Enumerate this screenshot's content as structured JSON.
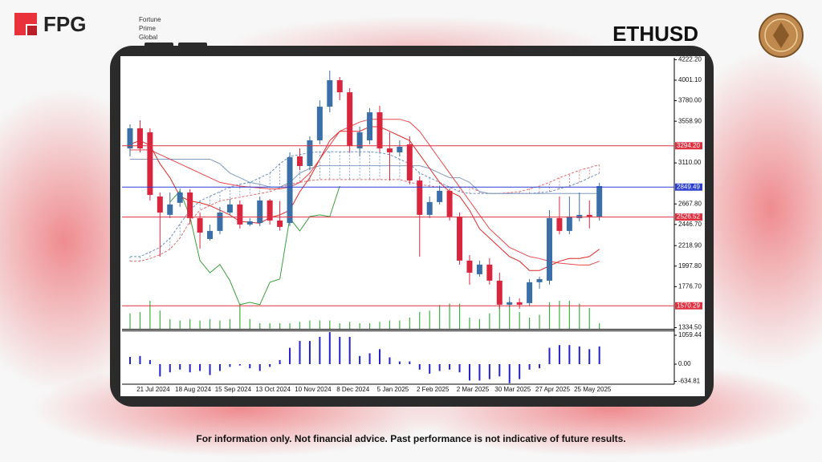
{
  "header": {
    "logo_text": "FPG",
    "logo_tagline": [
      "Fortune",
      "Prime",
      "Global"
    ],
    "symbol": "ETHUSD"
  },
  "footer": {
    "disclaimer": "For information only. Not financial advice. Past performance is not indicative of future results."
  },
  "chart_data": [
    {
      "type": "candlestick",
      "categories": [
        null,
        null,
        "21 Jul 2024",
        null,
        null,
        null,
        "18 Aug 2024",
        null,
        null,
        null,
        "15 Sep 2024",
        null,
        null,
        null,
        "13 Oct 2024",
        null,
        null,
        null,
        "10 Nov 2024",
        null,
        null,
        null,
        "8 Dec 2024",
        null,
        null,
        null,
        "5 Jan 2025",
        null,
        null,
        null,
        "2 Feb 2025",
        null,
        null,
        null,
        "2 Mar 2025",
        null,
        null,
        null,
        "30 Mar 2025",
        null,
        null,
        null,
        "27 Apr 2025",
        null,
        null,
        null,
        "25 May 2025",
        null
      ],
      "open": [
        3266,
        3483,
        3440,
        2748,
        2550,
        2680,
        2791,
        2515,
        2290,
        2377,
        2575,
        2662,
        2446,
        2463,
        2705,
        2489,
        2463,
        3180,
        3076,
        3353,
        3716,
        4001,
        3871,
        3266,
        3353,
        3655,
        3266,
        3223,
        3310,
        2920,
        2550,
        2688,
        2809,
        2532,
        2057,
        1910,
        2014,
        1841,
        1582,
        1608,
        1599,
        1824,
        1841,
        2515,
        2377,
        2515,
        2550,
        2532
      ],
      "high": [
        3526,
        3569,
        3483,
        2791,
        2791,
        2835,
        2826,
        2575,
        2446,
        2636,
        2722,
        2705,
        2515,
        2748,
        2722,
        2700,
        3223,
        3266,
        3396,
        3785,
        4105,
        4036,
        3915,
        3500,
        3700,
        3725,
        3440,
        3353,
        3396,
        2964,
        2748,
        2860,
        2835,
        2575,
        2117,
        2057,
        2083,
        1927,
        1668,
        1651,
        1858,
        1884,
        2601,
        2748,
        2748,
        2791,
        2705,
        2895
      ],
      "low": [
        3180,
        3223,
        2705,
        2100,
        2515,
        2636,
        2446,
        2187,
        2273,
        2342,
        2550,
        2403,
        2429,
        2429,
        2446,
        2380,
        2429,
        3033,
        3033,
        3310,
        3655,
        3785,
        3223,
        3180,
        3310,
        3223,
        2920,
        3180,
        2878,
        2100,
        2515,
        2662,
        2489,
        2014,
        1798,
        1884,
        1798,
        1539,
        1556,
        1539,
        1565,
        1755,
        1798,
        2342,
        2342,
        2480,
        2403,
        2489
      ],
      "close": [
        3483,
        3266,
        2765,
        2575,
        2662,
        2791,
        2515,
        2359,
        2377,
        2575,
        2662,
        2446,
        2480,
        2705,
        2489,
        2420,
        3171,
        3076,
        3353,
        3716,
        4001,
        3871,
        3292,
        3440,
        3655,
        3266,
        3223,
        3284,
        2920,
        2550,
        2688,
        2809,
        2532,
        2057,
        1927,
        2014,
        1841,
        1582,
        1608,
        1582,
        1824,
        1858,
        2515,
        2377,
        2532,
        2550,
        2532,
        2860
      ],
      "up_color": "#3a6fa8",
      "down_color": "#d9263e",
      "cloud": {
        "span_a": {
          "color": "#6a8fc0",
          "values": [
            2100,
            2100,
            2150,
            2200,
            2300,
            2450,
            2600,
            2700,
            2750,
            2800,
            2850,
            2880,
            2900,
            2950,
            3000,
            3100,
            3180,
            3200,
            3220,
            3230,
            3230,
            3230,
            3230,
            3230,
            3230,
            3220,
            3200,
            3150,
            3100,
            3000,
            2950,
            2900,
            2850,
            2800,
            2780,
            2780,
            2780,
            2780,
            2780,
            2780,
            2780,
            2790,
            2800,
            2830,
            2860,
            2900,
            2950,
            3000
          ]
        },
        "span_b": {
          "color": "#e06a6a",
          "values": [
            2050,
            2050,
            2080,
            2120,
            2180,
            2300,
            2480,
            2600,
            2650,
            2700,
            2720,
            2740,
            2760,
            2780,
            2800,
            2840,
            2880,
            2900,
            2920,
            2930,
            2930,
            2930,
            2930,
            2930,
            2930,
            2930,
            2930,
            2930,
            2900,
            2880,
            2860,
            2850,
            2850,
            2850,
            2850,
            2800,
            2780,
            2780,
            2790,
            2800,
            2830,
            2860,
            2900,
            2950,
            2990,
            3030,
            3060,
            3090
          ]
        }
      },
      "overlays": [
        {
          "color": "#7f9cc0",
          "values": [
            3150,
            3150,
            3150,
            3150,
            3150,
            3150,
            3150,
            3150,
            3150,
            3100,
            3000,
            2950,
            2900,
            2880,
            2850,
            2850,
            2900,
            3000,
            3050,
            3080,
            3080,
            3080,
            3080,
            3080,
            3080,
            3080,
            3080,
            3080,
            3080,
            3080,
            3050,
            3000,
            2950,
            2950,
            2900,
            2800,
            2780,
            2780,
            2780,
            2780,
            2780,
            2780,
            2780,
            2780,
            2780,
            2780,
            2780,
            2780
          ]
        },
        {
          "color": "#e8484c",
          "values": [
            3250,
            3250,
            3250,
            3200,
            3150,
            3100,
            3050,
            3000,
            2950,
            2900,
            2880,
            2860,
            2850,
            2840,
            2830,
            2830,
            2850,
            2900,
            3000,
            3150,
            3300,
            3450,
            3500,
            3550,
            3580,
            3580,
            3580,
            3580,
            3550,
            3450,
            3300,
            3150,
            3000,
            2850,
            2700,
            2550,
            2400,
            2300,
            2200,
            2150,
            2100,
            2080,
            2050,
            2030,
            2020,
            2010,
            2010,
            2050
          ]
        },
        {
          "color": "#e02828",
          "values": [
            3310,
            3350,
            3300,
            3100,
            2950,
            2750,
            2700,
            2680,
            2650,
            2600,
            2550,
            2480,
            2470,
            2460,
            2520,
            2550,
            2600,
            2800,
            2950,
            3150,
            3350,
            3450,
            3450,
            3450,
            3500,
            3500,
            3450,
            3400,
            3350,
            3200,
            3050,
            2900,
            2800,
            2750,
            2600,
            2400,
            2300,
            2200,
            2100,
            2050,
            1950,
            1950,
            2000,
            2050,
            2080,
            2080,
            2100,
            2180
          ]
        },
        {
          "color": "#3aa03a",
          "values": [
            null,
            null,
            null,
            null,
            2688,
            2809,
            2532,
            2057,
            1927,
            2014,
            1841,
            1582,
            1608,
            1582,
            1824,
            1858,
            2515,
            2377,
            2532,
            2550,
            2532,
            2860,
            null,
            null,
            null,
            null,
            null,
            null,
            null,
            null,
            null,
            null,
            null,
            null,
            null,
            null,
            null,
            null,
            null,
            null,
            null,
            null,
            null,
            null,
            null,
            null,
            null,
            null
          ]
        }
      ],
      "volume": {
        "color": "#3cb043",
        "values": [
          55,
          60,
          100,
          65,
          35,
          30,
          35,
          30,
          35,
          30,
          35,
          90,
          35,
          20,
          20,
          20,
          20,
          25,
          30,
          30,
          30,
          20,
          25,
          20,
          20,
          25,
          30,
          30,
          40,
          60,
          65,
          85,
          90,
          90,
          40,
          35,
          55,
          100,
          100,
          60,
          40,
          50,
          95,
          100,
          100,
          90,
          75,
          20
        ]
      },
      "volume_lim": [
        0,
        100
      ],
      "levels": [
        {
          "value": 3294.2,
          "label": "3294.20",
          "color": "#e03040"
        },
        {
          "value": 2849.49,
          "label": "2849.49",
          "color": "#2a3fd0"
        },
        {
          "value": 2526.52,
          "label": "2526.52",
          "color": "#e03040"
        },
        {
          "value": 1570.29,
          "label": "1570.29",
          "color": "#e03040"
        }
      ],
      "ylim": [
        1321.7,
        4242.9
      ],
      "yticks": [
        {
          "value": 4222.2,
          "label": "4222.20"
        },
        {
          "value": 4001.1,
          "label": "4001.10"
        },
        {
          "value": 3780,
          "label": "3780.00"
        },
        {
          "value": 3558.9,
          "label": "3558.90"
        },
        {
          "value": 3110,
          "label": "3110.00"
        },
        {
          "value": 2667.8,
          "label": "2667.80"
        },
        {
          "value": 2446.7,
          "label": "2446.70"
        },
        {
          "value": 2218.9,
          "label": "2218.90"
        },
        {
          "value": 1997.8,
          "label": "1997.80"
        },
        {
          "value": 1776.7,
          "label": "1776.70"
        },
        {
          "value": 1334.5,
          "label": "1334.50"
        }
      ]
    },
    {
      "type": "bar",
      "color": "#2323c8",
      "values": [
        265,
        300,
        150,
        -450,
        -300,
        -200,
        -300,
        -250,
        -400,
        -250,
        -100,
        -50,
        -150,
        -250,
        -100,
        150,
        600,
        850,
        850,
        1000,
        1176,
        1000,
        1000,
        300,
        400,
        550,
        250,
        100,
        100,
        -200,
        -350,
        -250,
        -200,
        -300,
        -600,
        -600,
        -550,
        -450,
        -700,
        -550,
        -200,
        -150,
        600,
        700,
        700,
        650,
        550,
        650
      ],
      "ylim": [
        -706,
        1236
      ],
      "yticks": [
        1059.44,
        {
          "value": 0,
          "label": "0.00"
        },
        -634.81
      ]
    }
  ]
}
